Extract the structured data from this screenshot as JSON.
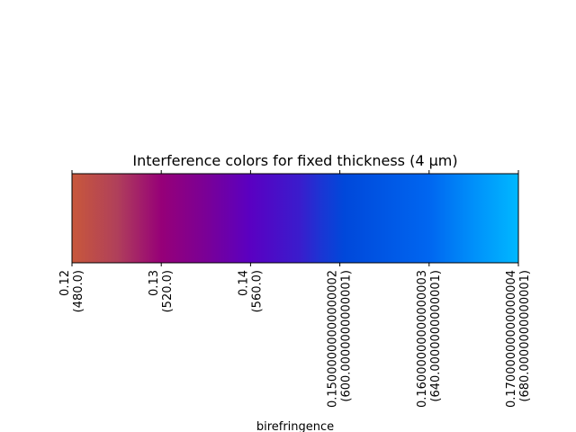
{
  "chart_data": {
    "type": "heatmap",
    "title": "Interference colors for fixed thickness (4 μm)",
    "xlabel": "birefringence",
    "ylabel": "",
    "xlim": [
      0.12,
      0.17
    ],
    "grid": false,
    "legend": "none",
    "x": [
      0.12,
      0.13,
      0.14,
      0.15,
      0.16,
      0.17
    ],
    "tick_labels": [
      {
        "line1": "0.12",
        "line2": "(480.0)"
      },
      {
        "line1": "0.13",
        "line2": "(520.0)"
      },
      {
        "line1": "0.14",
        "line2": "(560.0)"
      },
      {
        "line1": "0.15000000000000002",
        "line2": "(600.0000000000001)"
      },
      {
        "line1": "0.16000000000000003",
        "line2": "(640.0000000000001)"
      },
      {
        "line1": "0.17000000000000004",
        "line2": "(680.0000000000001)"
      }
    ],
    "color_stops": [
      {
        "x": 0.12,
        "color": "#c8583b"
      },
      {
        "x": 0.125,
        "color": "#b0405a"
      },
      {
        "x": 0.13,
        "color": "#960078"
      },
      {
        "x": 0.135,
        "color": "#7a0096"
      },
      {
        "x": 0.14,
        "color": "#5a00c2"
      },
      {
        "x": 0.1455,
        "color": "#3a1ccc"
      },
      {
        "x": 0.148,
        "color": "#1a36d4"
      },
      {
        "x": 0.1505,
        "color": "#0048da"
      },
      {
        "x": 0.16,
        "color": "#0066f0"
      },
      {
        "x": 0.165,
        "color": "#0090fa"
      },
      {
        "x": 0.17,
        "color": "#00b8ff"
      }
    ]
  }
}
